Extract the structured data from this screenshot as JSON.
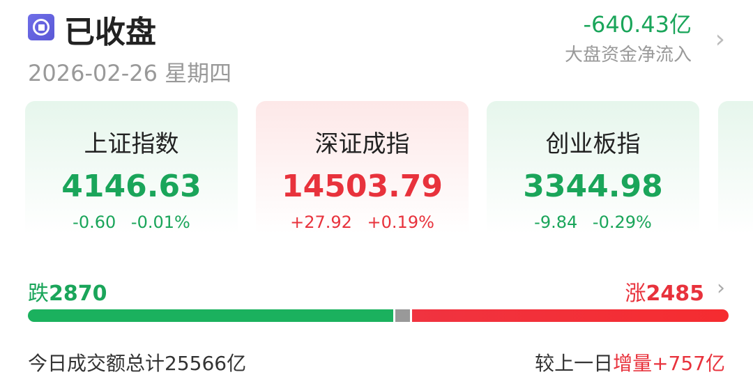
{
  "header": {
    "status": "已收盘",
    "date": "2026-02-26",
    "weekday": "星期四",
    "status_icon": "stop-circle-icon"
  },
  "fund_flow": {
    "value": "-640.43亿",
    "label": "大盘资金净流入"
  },
  "indices": [
    {
      "name": "上证指数",
      "value": "4146.63",
      "change": "-0.60",
      "pct": "-0.01%",
      "trend": "down"
    },
    {
      "name": "深证成指",
      "value": "14503.79",
      "change": "+27.92",
      "pct": "+0.19%",
      "trend": "up"
    },
    {
      "name": "创业板指",
      "value": "3344.98",
      "change": "-9.84",
      "pct": "-0.29%",
      "trend": "down"
    }
  ],
  "breadth": {
    "fall_label": "跌",
    "fall": "2870",
    "rise_label": "涨",
    "rise": "2485"
  },
  "turnover": {
    "label": "今日成交额总计",
    "value": "25566亿",
    "compare": "较上一日",
    "delta_label": "增量",
    "delta": "+757亿"
  },
  "colors": {
    "up": "#e8323c",
    "down": "#1aa55a",
    "accent": "#5a58d6"
  }
}
